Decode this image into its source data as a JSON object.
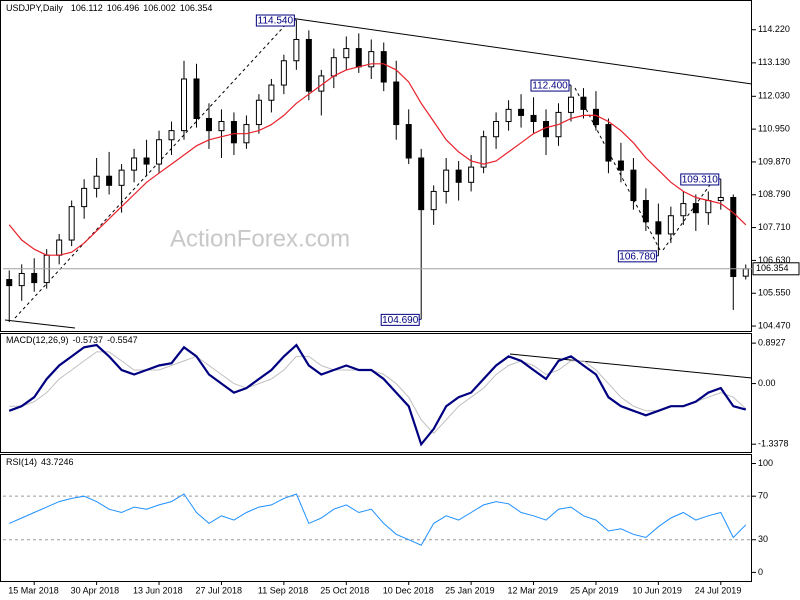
{
  "chart_data": [
    {
      "type": "candlestick",
      "title": "USDJPY,Daily",
      "watermark": "ActionForex.com",
      "ylim": [
        104.34,
        115.1
      ],
      "yticks": [
        {
          "value": 114.22,
          "label": "114.220"
        },
        {
          "value": 113.13,
          "label": "113.130"
        },
        {
          "value": 112.03,
          "label": "112.030"
        },
        {
          "value": 110.95,
          "label": "110.950"
        },
        {
          "value": 109.87,
          "label": "109.870"
        },
        {
          "value": 108.79,
          "label": "108.790"
        },
        {
          "value": 107.71,
          "label": "107.710"
        },
        {
          "value": 106.63,
          "label": "106.630"
        },
        {
          "value": 105.55,
          "label": "105.550"
        },
        {
          "value": 104.47,
          "label": "104.470"
        }
      ],
      "open": [
        106.0,
        105.8,
        106.2,
        105.9,
        106.8,
        107.3,
        108.4,
        109.0,
        109.4,
        109.1,
        109.6,
        110.0,
        109.8,
        110.6,
        110.9,
        112.6,
        111.3,
        110.9,
        111.2,
        110.5,
        111.1,
        111.9,
        112.4,
        113.2,
        113.9,
        112.2,
        112.7,
        113.3,
        113.6,
        113.0,
        113.5,
        112.5,
        111.1,
        110.0,
        108.3,
        108.9,
        109.6,
        109.2,
        109.7,
        110.7,
        111.2,
        111.6,
        111.4,
        111.2,
        110.7,
        111.5,
        112.0,
        111.6,
        111.1,
        109.9,
        109.6,
        108.6,
        107.9,
        107.5,
        108.1,
        108.5,
        108.2,
        108.6,
        108.7,
        106.112
      ],
      "high": [
        106.3,
        106.5,
        106.7,
        107.0,
        107.5,
        108.6,
        109.3,
        110.0,
        110.2,
        109.8,
        110.3,
        110.6,
        110.9,
        111.2,
        113.2,
        113.1,
        111.8,
        111.6,
        111.5,
        111.4,
        112.1,
        112.6,
        113.4,
        114.54,
        114.2,
        112.9,
        113.6,
        114.0,
        114.1,
        113.9,
        113.8,
        113.2,
        111.6,
        110.3,
        109.1,
        110.0,
        109.9,
        110.1,
        110.9,
        111.5,
        111.9,
        112.1,
        112.0,
        111.6,
        111.8,
        112.4,
        112.3,
        112.2,
        111.3,
        110.5,
        110.0,
        109.0,
        108.5,
        108.4,
        108.9,
        108.8,
        108.9,
        109.31,
        108.8,
        106.496
      ],
      "low": [
        104.6,
        105.3,
        105.6,
        105.7,
        106.5,
        107.1,
        108.0,
        108.7,
        108.8,
        108.2,
        109.2,
        109.4,
        109.5,
        110.1,
        110.6,
        111.0,
        110.3,
        110.0,
        110.1,
        110.3,
        110.8,
        111.5,
        112.1,
        112.9,
        111.9,
        111.4,
        112.3,
        112.9,
        112.8,
        112.6,
        112.2,
        110.6,
        109.8,
        104.69,
        107.8,
        108.5,
        108.6,
        108.9,
        109.5,
        110.3,
        110.9,
        111.0,
        110.8,
        110.1,
        110.4,
        111.2,
        111.3,
        110.9,
        109.5,
        109.2,
        108.3,
        107.6,
        106.78,
        107.2,
        107.8,
        107.6,
        107.8,
        108.3,
        105.0,
        106.002
      ],
      "close": [
        105.8,
        106.2,
        105.9,
        106.8,
        107.3,
        108.4,
        109.0,
        109.4,
        109.1,
        109.6,
        110.0,
        109.8,
        110.6,
        110.9,
        112.6,
        111.3,
        110.9,
        111.2,
        110.5,
        111.1,
        111.9,
        112.4,
        113.2,
        113.9,
        112.2,
        112.7,
        113.3,
        113.6,
        113.0,
        113.5,
        112.5,
        111.1,
        110.0,
        108.3,
        108.9,
        109.6,
        109.2,
        109.7,
        110.7,
        111.2,
        111.6,
        111.4,
        111.2,
        110.7,
        111.5,
        112.0,
        111.6,
        111.1,
        109.9,
        109.6,
        108.6,
        107.9,
        107.5,
        108.1,
        108.5,
        108.2,
        108.6,
        108.7,
        106.1,
        106.354
      ],
      "color": "#000000",
      "overlay": {
        "color": "#e8202a",
        "values": [
          107.8,
          107.3,
          107.0,
          106.8,
          106.8,
          106.9,
          107.2,
          107.6,
          108.0,
          108.4,
          108.8,
          109.2,
          109.5,
          109.8,
          110.1,
          110.4,
          110.6,
          110.7,
          110.8,
          110.8,
          110.9,
          111.1,
          111.4,
          111.8,
          112.1,
          112.4,
          112.7,
          112.9,
          113.0,
          113.1,
          113.1,
          112.9,
          112.5,
          111.8,
          111.2,
          110.6,
          110.2,
          109.9,
          109.8,
          109.9,
          110.2,
          110.5,
          110.8,
          111.0,
          111.1,
          111.3,
          111.4,
          111.4,
          111.2,
          110.9,
          110.5,
          110.0,
          109.6,
          109.2,
          108.9,
          108.7,
          108.6,
          108.5,
          108.2,
          107.8
        ]
      },
      "annotations": [
        {
          "value": 114.54,
          "label": "114.540"
        },
        {
          "value": 112.4,
          "label": "112.400"
        },
        {
          "value": 109.31,
          "label": "109.310"
        },
        {
          "value": 106.78,
          "label": "106.780"
        },
        {
          "value": 104.69,
          "label": "104.690"
        }
      ]
    },
    {
      "type": "line",
      "title": "MACD(12,26,9)",
      "ylim": [
        -1.51,
        1.05
      ],
      "yticks": [
        0.8927,
        {
          "value": 0,
          "label": "0.00"
        },
        -1.3378
      ],
      "series": [
        {
          "color": "#c0c0c0",
          "values": [
            -0.5,
            -0.5,
            -0.4,
            -0.2,
            0.1,
            0.3,
            0.5,
            0.7,
            0.7,
            0.5,
            0.3,
            0.3,
            0.3,
            0.4,
            0.5,
            0.6,
            0.4,
            0.2,
            0.0,
            -0.1,
            0.0,
            0.1,
            0.3,
            0.6,
            0.6,
            0.4,
            0.3,
            0.3,
            0.3,
            0.3,
            0.2,
            0.0,
            -0.3,
            -0.8,
            -1.1,
            -0.8,
            -0.5,
            -0.3,
            -0.1,
            0.2,
            0.4,
            0.5,
            0.4,
            0.2,
            0.3,
            0.5,
            0.5,
            0.3,
            0.0,
            -0.3,
            -0.5,
            -0.6,
            -0.6,
            -0.5,
            -0.5,
            -0.4,
            -0.3,
            -0.2,
            -0.3,
            -0.5547
          ]
        },
        {
          "color": "#000080",
          "values": [
            -0.6,
            -0.5,
            -0.3,
            0.1,
            0.4,
            0.6,
            0.8,
            0.85,
            0.6,
            0.3,
            0.2,
            0.3,
            0.4,
            0.45,
            0.8,
            0.6,
            0.2,
            0.0,
            -0.2,
            -0.1,
            0.1,
            0.3,
            0.6,
            0.85,
            0.4,
            0.2,
            0.3,
            0.4,
            0.3,
            0.3,
            0.1,
            -0.2,
            -0.5,
            -1.34,
            -1.0,
            -0.5,
            -0.3,
            -0.2,
            0.1,
            0.4,
            0.6,
            0.5,
            0.3,
            0.1,
            0.5,
            0.6,
            0.4,
            0.2,
            -0.3,
            -0.5,
            -0.6,
            -0.7,
            -0.6,
            -0.5,
            -0.5,
            -0.4,
            -0.2,
            -0.1,
            -0.5,
            -0.5737
          ]
        }
      ]
    },
    {
      "type": "line",
      "title": "RSI(14)",
      "ylim": [
        -7,
        106
      ],
      "yticks": [
        100,
        70,
        30,
        0
      ],
      "levels": [
        70,
        30
      ],
      "series": [
        {
          "color": "#1e90ff",
          "values": [
            45,
            50,
            55,
            60,
            65,
            68,
            70,
            65,
            58,
            55,
            60,
            58,
            62,
            65,
            72,
            55,
            45,
            52,
            48,
            55,
            60,
            62,
            68,
            72,
            45,
            50,
            58,
            62,
            55,
            58,
            45,
            35,
            30,
            25,
            45,
            52,
            48,
            55,
            62,
            65,
            63,
            55,
            52,
            48,
            58,
            60,
            52,
            48,
            38,
            40,
            35,
            32,
            42,
            50,
            55,
            48,
            52,
            55,
            32,
            43.7246
          ]
        }
      ],
      "categories": [
        null,
        null,
        "15 Mar 2018",
        null,
        null,
        null,
        null,
        "30 Apr 2018",
        null,
        null,
        null,
        null,
        "13 Jun 2018",
        null,
        null,
        null,
        null,
        "27 Jul 2018",
        null,
        null,
        null,
        null,
        "11 Sep 2018",
        null,
        null,
        null,
        null,
        "25 Oct 2018",
        null,
        null,
        null,
        null,
        "10 Dec 2018",
        null,
        null,
        null,
        null,
        "25 Jan 2019",
        null,
        null,
        null,
        null,
        "12 Mar 2019",
        null,
        null,
        null,
        null,
        "25 Apr 2019",
        null,
        null,
        null,
        null,
        "10 Jun 2019",
        null,
        null,
        null,
        null,
        "24 Jul 2019",
        null,
        null
      ]
    }
  ]
}
